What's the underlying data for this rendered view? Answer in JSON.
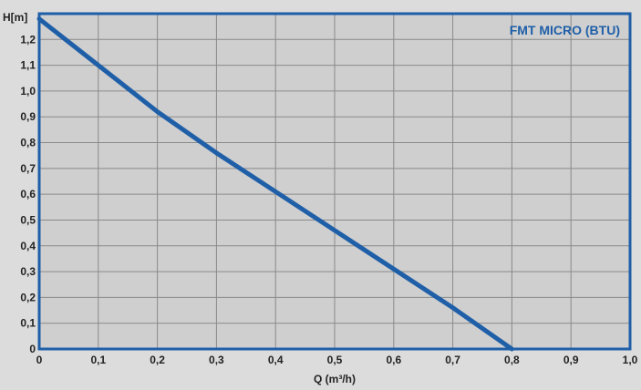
{
  "chart_data": {
    "type": "line",
    "title": "FMT MICRO (BTU)",
    "xlabel": "Q (m³/h)",
    "ylabel": "H[m]",
    "xlim": [
      0,
      1.0
    ],
    "ylim": [
      0,
      1.3
    ],
    "x_ticks": [
      "0",
      "0,1",
      "0,2",
      "0,3",
      "0,4",
      "0,5",
      "0,6",
      "0,7",
      "0,8",
      "0,9",
      "1,0"
    ],
    "y_ticks": [
      "0",
      "0,1",
      "0,2",
      "0,3",
      "0,4",
      "0,5",
      "0,6",
      "0,7",
      "0,8",
      "0,9",
      "1,0",
      "1,1",
      "1,2"
    ],
    "grid": true,
    "series": [
      {
        "color": "#1f5fa8",
        "x": [
          0,
          0.1,
          0.2,
          0.3,
          0.4,
          0.5,
          0.6,
          0.7,
          0.8
        ],
        "y": [
          1.28,
          1.1,
          0.92,
          0.76,
          0.61,
          0.46,
          0.31,
          0.16,
          0.0
        ]
      }
    ]
  }
}
